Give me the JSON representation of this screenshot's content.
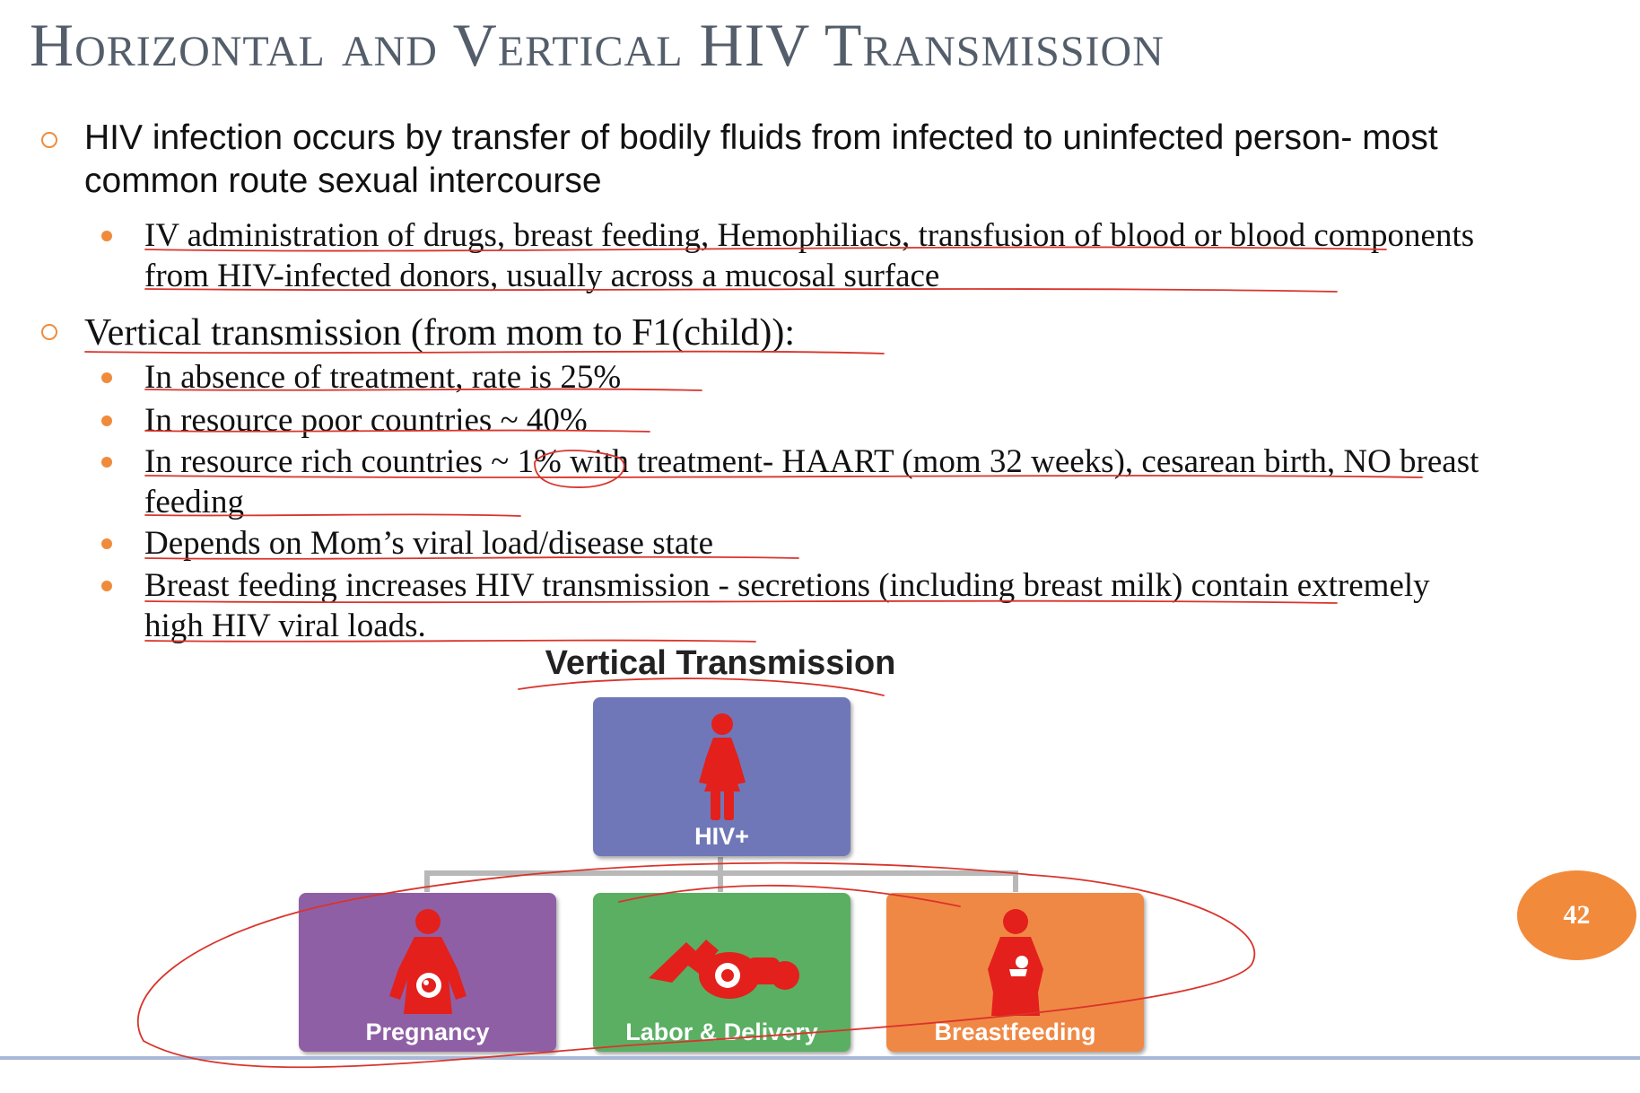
{
  "slide": {
    "title": "Horizontal and Vertical HIV Transmission",
    "page_number": "42"
  },
  "bullets": [
    {
      "text": "HIV infection occurs by transfer of bodily fluids from infected to uninfected person- most common route sexual intercourse",
      "sub": [
        "IV administration of drugs, breast feeding, Hemophiliacs, transfusion of blood or blood components from HIV-infected donors, usually across a mucosal surface"
      ]
    },
    {
      "text": "Vertical transmission (from mom to F1(child)):",
      "sub": [
        "In absence of treatment, rate is 25%",
        "In resource poor countries ~ 40%",
        "In resource rich countries ~ 1% with treatment- HAART (mom 32 weeks), cesarean birth, NO breast feeding",
        "Depends on Mom’s viral load/disease state",
        "Breast feeding increases HIV transmission - secretions (including breast milk) contain extremely high HIV viral loads."
      ]
    }
  ],
  "diagram": {
    "title": "Vertical Transmission",
    "top": {
      "label": "HIV+",
      "color": "#7077b8",
      "icon": "woman-icon"
    },
    "children": [
      {
        "label": "Pregnancy",
        "color": "#8f5fa5",
        "icon": "pregnant-woman-icon"
      },
      {
        "label": "Labor & Delivery",
        "color": "#5aaf63",
        "icon": "childbirth-icon"
      },
      {
        "label": "Breastfeeding",
        "color": "#f08845",
        "icon": "breastfeeding-mother-icon"
      }
    ],
    "figure_color": "#e3201b"
  },
  "colors": {
    "bullet_accent": "#ef8b3b",
    "ink_annotation": "#d9342b",
    "title": "#545e6b"
  }
}
